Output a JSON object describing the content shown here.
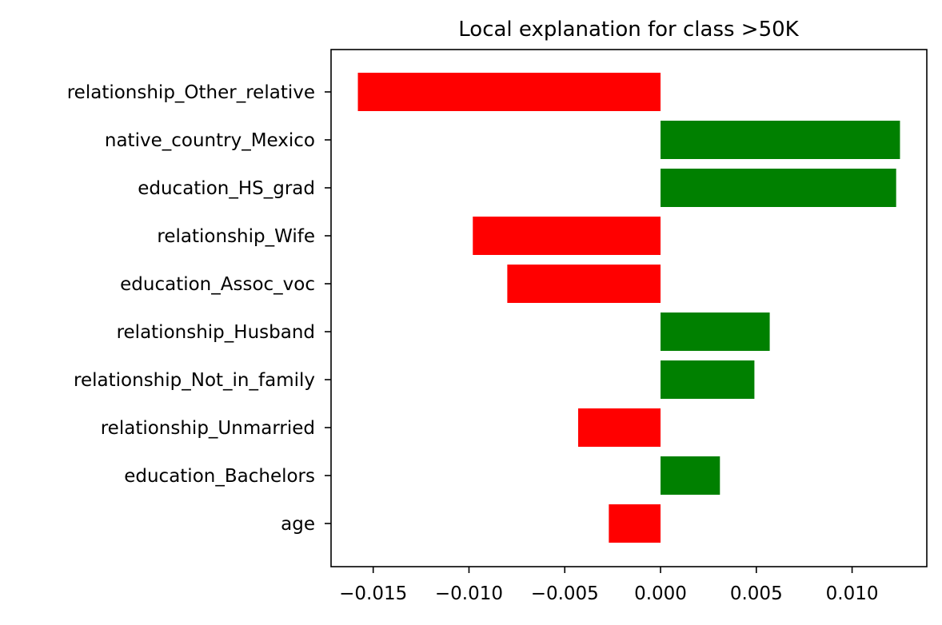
{
  "chart_data": {
    "type": "bar",
    "orientation": "horizontal",
    "title": "Local explanation for class >50K",
    "xlabel": "",
    "ylabel": "",
    "xlim": [
      -0.0172,
      0.0139
    ],
    "grid": false,
    "legend": "none",
    "x_ticks": [
      -0.015,
      -0.01,
      -0.005,
      0.0,
      0.005,
      0.01
    ],
    "x_tick_labels": [
      "−0.015",
      "−0.010",
      "−0.005",
      "0.000",
      "0.005",
      "0.010"
    ],
    "categories": [
      "relationship_Other_relative",
      "native_country_Mexico",
      "education_HS_grad",
      "relationship_Wife",
      "education_Assoc_voc",
      "relationship_Husband",
      "relationship_Not_in_family",
      "relationship_Unmarried",
      "education_Bachelors",
      "age"
    ],
    "values": [
      -0.0158,
      0.0125,
      0.0123,
      -0.0098,
      -0.008,
      0.0057,
      0.0049,
      -0.0043,
      0.0031,
      -0.0027
    ],
    "colors": {
      "positive": "#008000",
      "negative": "#ff0000"
    }
  }
}
